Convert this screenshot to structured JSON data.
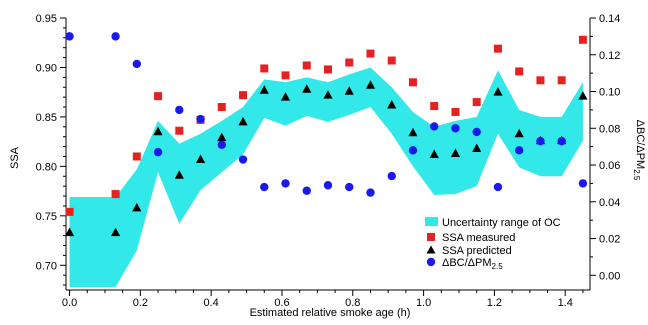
{
  "chart_data": {
    "type": "scatter",
    "xlabel": "Estimated relative smoke age (h)",
    "ylabel_left": "SSA",
    "ylabel_right": "ΔBC/ΔPM",
    "ylabel_right_subscript": "2.5",
    "xlim": [
      -0.01,
      1.47
    ],
    "ylim_left": [
      0.675,
      0.95
    ],
    "ylim_right": [
      -0.008,
      0.14
    ],
    "x_ticks": [
      0.0,
      0.2,
      0.4,
      0.6,
      0.8,
      1.0,
      1.2,
      1.4
    ],
    "x_tick_labels": [
      "0.0",
      "0.2",
      "0.4",
      "0.6",
      "0.8",
      "1.0",
      "1.2",
      "1.4"
    ],
    "y_left_ticks": [
      0.7,
      0.75,
      0.8,
      0.85,
      0.9,
      0.95
    ],
    "y_left_tick_labels": [
      "0.70",
      "0.75",
      "0.80",
      "0.85",
      "0.90",
      "0.95"
    ],
    "y_right_ticks": [
      0.0,
      0.02,
      0.04,
      0.06,
      0.08,
      0.1,
      0.12,
      0.14
    ],
    "y_right_tick_labels": [
      "0.00",
      "0.02",
      "0.04",
      "0.06",
      "0.08",
      "0.10",
      "0.12",
      "0.14"
    ],
    "grid": false,
    "legend_position": "bottom-right",
    "band": {
      "name": "Uncertainty range of OC",
      "color": "#33e8e8",
      "x": [
        0.0,
        0.13,
        0.19,
        0.25,
        0.31,
        0.37,
        0.43,
        0.49,
        0.55,
        0.61,
        0.67,
        0.73,
        0.79,
        0.85,
        0.91,
        0.97,
        1.03,
        1.09,
        1.15,
        1.21,
        1.27,
        1.33,
        1.39,
        1.45
      ],
      "upper": [
        0.769,
        0.769,
        0.797,
        0.846,
        0.823,
        0.833,
        0.846,
        0.86,
        0.888,
        0.885,
        0.89,
        0.885,
        0.893,
        0.9,
        0.88,
        0.855,
        0.84,
        0.846,
        0.85,
        0.897,
        0.857,
        0.85,
        0.85,
        0.885
      ],
      "lower": [
        0.678,
        0.678,
        0.715,
        0.794,
        0.742,
        0.776,
        0.794,
        0.812,
        0.849,
        0.841,
        0.851,
        0.845,
        0.852,
        0.86,
        0.833,
        0.8,
        0.771,
        0.772,
        0.78,
        0.833,
        0.799,
        0.79,
        0.79,
        0.826
      ]
    },
    "series": [
      {
        "name": "SSA measured",
        "axis": "left",
        "marker": "square",
        "color": "#e52222",
        "x": [
          0.0,
          0.13,
          0.19,
          0.25,
          0.31,
          0.37,
          0.43,
          0.49,
          0.55,
          0.61,
          0.67,
          0.73,
          0.79,
          0.85,
          0.91,
          0.97,
          1.03,
          1.09,
          1.15,
          1.21,
          1.27,
          1.33,
          1.39,
          1.45
        ],
        "y": [
          0.754,
          0.772,
          0.81,
          0.871,
          0.836,
          0.847,
          0.86,
          0.872,
          0.899,
          0.892,
          0.902,
          0.898,
          0.905,
          0.914,
          0.907,
          0.885,
          0.861,
          0.855,
          0.865,
          0.919,
          0.896,
          0.887,
          0.887,
          0.928
        ]
      },
      {
        "name": "SSA predicted",
        "axis": "left",
        "marker": "triangle",
        "color": "#000000",
        "x": [
          0.0,
          0.13,
          0.19,
          0.25,
          0.31,
          0.37,
          0.43,
          0.49,
          0.55,
          0.61,
          0.67,
          0.73,
          0.79,
          0.85,
          0.91,
          0.97,
          1.03,
          1.09,
          1.15,
          1.21,
          1.27,
          1.33,
          1.39,
          1.45
        ],
        "y": [
          0.733,
          0.733,
          0.758,
          0.835,
          0.791,
          0.807,
          0.829,
          0.845,
          0.877,
          0.87,
          0.878,
          0.872,
          0.876,
          0.882,
          0.862,
          0.834,
          0.812,
          0.813,
          0.818,
          0.875,
          0.833,
          0.826,
          0.826,
          0.871
        ]
      },
      {
        "name": "ΔBC/ΔPM",
        "name_subscript": "2.5",
        "axis": "right",
        "marker": "circle",
        "color": "#1a1aee",
        "x": [
          0.0,
          0.13,
          0.19,
          0.25,
          0.31,
          0.37,
          0.43,
          0.49,
          0.55,
          0.61,
          0.67,
          0.73,
          0.79,
          0.85,
          0.91,
          0.97,
          1.03,
          1.09,
          1.15,
          1.21,
          1.27,
          1.33,
          1.39,
          1.45
        ],
        "y": [
          0.13,
          0.13,
          0.115,
          0.067,
          0.09,
          0.085,
          0.071,
          0.063,
          0.048,
          0.05,
          0.046,
          0.049,
          0.048,
          0.045,
          0.054,
          0.068,
          0.081,
          0.08,
          0.078,
          0.048,
          0.068,
          0.073,
          0.073,
          0.05
        ]
      }
    ]
  }
}
